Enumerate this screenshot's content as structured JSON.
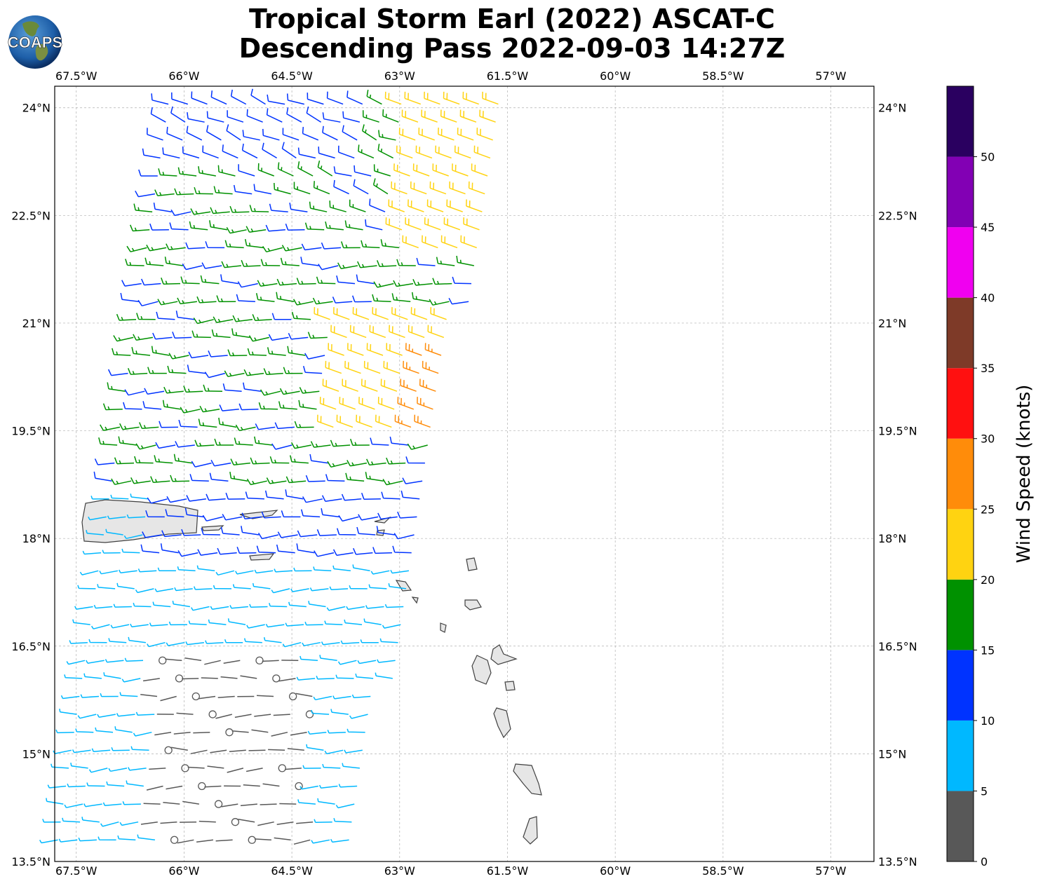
{
  "title": {
    "line1": "Tropical Storm Earl (2022) ASCAT-C",
    "line2": "Descending Pass 2022-09-03 14:27Z"
  },
  "logo": {
    "text": "COAPS",
    "icon": "globe-logo"
  },
  "map": {
    "lon_range": [
      -67.8,
      -56.4
    ],
    "lat_range": [
      13.5,
      24.3
    ],
    "x_ticks": [
      {
        "value": -67.5,
        "label": "67.5°W"
      },
      {
        "value": -66.0,
        "label": "66°W"
      },
      {
        "value": -64.5,
        "label": "64.5°W"
      },
      {
        "value": -63.0,
        "label": "63°W"
      },
      {
        "value": -61.5,
        "label": "61.5°W"
      },
      {
        "value": -60.0,
        "label": "60°W"
      },
      {
        "value": -58.5,
        "label": "58.5°W"
      },
      {
        "value": -57.0,
        "label": "57°W"
      }
    ],
    "y_ticks": [
      {
        "value": 24.0,
        "label": "24°N"
      },
      {
        "value": 22.5,
        "label": "22.5°N"
      },
      {
        "value": 21.0,
        "label": "21°N"
      },
      {
        "value": 19.5,
        "label": "19.5°N"
      },
      {
        "value": 18.0,
        "label": "18°N"
      },
      {
        "value": 16.5,
        "label": "16.5°N"
      },
      {
        "value": 15.0,
        "label": "15°N"
      },
      {
        "value": 13.5,
        "label": "13.5°N"
      }
    ],
    "grid": true,
    "land_color": "#e6e6e6",
    "coast_color": "#404040"
  },
  "colorbar": {
    "label": "Wind Speed (knots)",
    "bounds": [
      0,
      5,
      10,
      15,
      20,
      25,
      30,
      35,
      40,
      45,
      50,
      55
    ],
    "tick_labels": [
      "0",
      "5",
      "10",
      "15",
      "20",
      "25",
      "30",
      "35",
      "40",
      "45",
      "50"
    ],
    "colors": [
      "#585858",
      "#00b8ff",
      "#0033ff",
      "#009100",
      "#ffd311",
      "#ff8c0a",
      "#ff1010",
      "#7e3a28",
      "#f000f0",
      "#8200b4",
      "#2a0060"
    ]
  }
}
